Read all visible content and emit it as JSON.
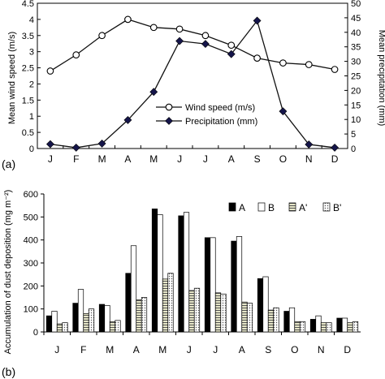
{
  "figure": {
    "panel_a_label": "(a)",
    "panel_b_label": "(b)"
  },
  "chart_data": [
    {
      "type": "line",
      "panel": "(a)",
      "categories": [
        "J",
        "F",
        "M",
        "A",
        "M",
        "J",
        "J",
        "A",
        "S",
        "O",
        "N",
        "D"
      ],
      "ylabel": "Mean wind speed (m/s)",
      "ylim": [
        0,
        4.5
      ],
      "yticks": [
        "0",
        "0.5",
        "1",
        "1.5",
        "2",
        "2.5",
        "3",
        "3.5",
        "4",
        "4.5"
      ],
      "y2label": "Mean precipitation (mm)",
      "y2lim": [
        0,
        50
      ],
      "y2ticks": [
        "0",
        "5",
        "10",
        "15",
        "20",
        "25",
        "30",
        "35",
        "40",
        "45",
        "50"
      ],
      "legend_position": "lower-middle",
      "grid": false,
      "series": [
        {
          "name": "Wind speed (m/s)",
          "axis": "left",
          "marker": "open-circle",
          "values": [
            2.4,
            2.9,
            3.5,
            4.0,
            3.75,
            3.7,
            3.5,
            3.2,
            2.8,
            2.65,
            2.6,
            2.45
          ]
        },
        {
          "name": "Precipitation (mm)",
          "axis": "right",
          "marker": "filled-diamond",
          "values": [
            1.5,
            0.3,
            1.7,
            9.8,
            19.5,
            37.0,
            36.0,
            32.5,
            44.0,
            12.8,
            1.4,
            0.3
          ]
        }
      ]
    },
    {
      "type": "bar",
      "panel": "(b)",
      "categories": [
        "J",
        "F",
        "M",
        "A",
        "M",
        "J",
        "J",
        "A",
        "S",
        "O",
        "N",
        "D"
      ],
      "ylabel": "Accumulation of dust deposition (mg m⁻²)",
      "ylim": [
        0,
        600
      ],
      "yticks": [
        "0",
        "100",
        "200",
        "300",
        "400",
        "500",
        "600"
      ],
      "legend_position": "top-right",
      "grid": false,
      "series": [
        {
          "name": "A",
          "fill": "solid-black",
          "values": [
            70,
            125,
            120,
            255,
            535,
            505,
            410,
            395,
            232,
            90,
            55,
            60
          ]
        },
        {
          "name": "B",
          "fill": "white",
          "values": [
            90,
            185,
            115,
            375,
            510,
            520,
            410,
            415,
            240,
            105,
            70,
            60
          ]
        },
        {
          "name": "A'",
          "fill": "horizontal-hatch",
          "values": [
            35,
            80,
            45,
            140,
            230,
            180,
            170,
            130,
            95,
            45,
            40,
            40
          ]
        },
        {
          "name": "B'",
          "fill": "dotted",
          "values": [
            40,
            100,
            50,
            150,
            255,
            190,
            165,
            125,
            105,
            45,
            40,
            45
          ]
        }
      ]
    }
  ]
}
